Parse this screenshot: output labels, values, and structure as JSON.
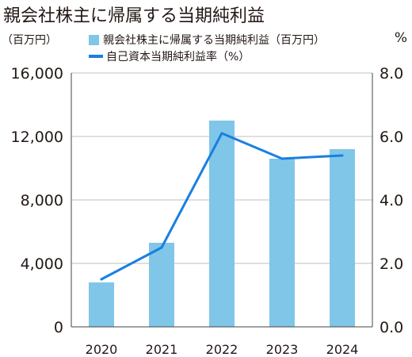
{
  "header": {
    "title": "親会社株主に帰属する当期純利益",
    "unit_left": "（百万円）",
    "unit_right": "%"
  },
  "legend": {
    "bar_label": "親会社株主に帰属する当期純利益（百万円）",
    "line_label": "自己資本当期純利益率（%）"
  },
  "colors": {
    "bar": "#7fc6e8",
    "line": "#1a7fe0",
    "axis": "#444444",
    "grid": "#bfbfbf"
  },
  "chart_data": {
    "type": "bar",
    "categories": [
      "2020",
      "2021",
      "2022",
      "2023",
      "2024"
    ],
    "series": [
      {
        "name": "親会社株主に帰属する当期純利益（百万円）",
        "type": "bar",
        "axis": "left",
        "values": [
          2800,
          5300,
          13000,
          10600,
          11200
        ]
      },
      {
        "name": "自己資本当期純利益率（%）",
        "type": "line",
        "axis": "right",
        "values": [
          1.5,
          2.5,
          6.1,
          5.3,
          5.4
        ]
      }
    ],
    "y_left": {
      "ylim": [
        0,
        16000
      ],
      "ticks": [
        0,
        4000,
        8000,
        12000,
        16000
      ],
      "tick_labels": [
        "0",
        "4,000",
        "8,000",
        "12,000",
        "16,000"
      ]
    },
    "y_right": {
      "ylim": [
        0,
        8
      ],
      "ticks": [
        0,
        2,
        4,
        6,
        8
      ],
      "tick_labels": [
        "0.0",
        "2.0",
        "4.0",
        "6.0",
        "8.0"
      ]
    },
    "grid": true,
    "legend_position": "top"
  }
}
